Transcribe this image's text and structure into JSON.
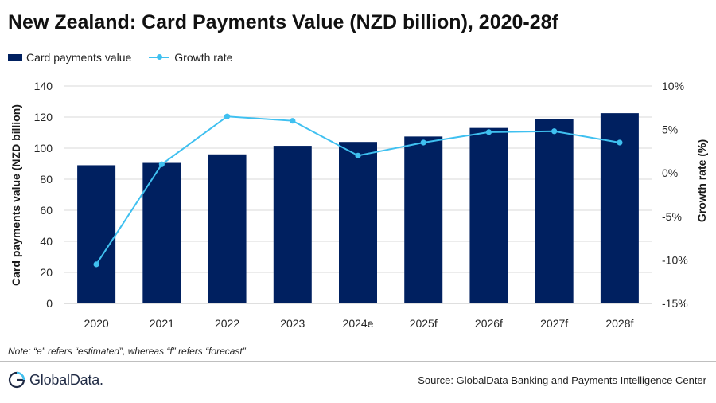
{
  "header": {
    "title": "New Zealand: Card Payments Value (NZD billion), 2020-28f"
  },
  "legend": {
    "bar_label": "Card payments value",
    "line_label": "Growth rate"
  },
  "footer": {
    "note": "Note: “e” refers “estimated”, whereas “f” refers “forecast”",
    "logo_text": "GlobalData.",
    "source": "Source: GlobalData Banking and Payments Intelligence Center"
  },
  "colors": {
    "bar": "#002060",
    "line": "#3FC0F0",
    "grid": "#d9d9d9",
    "axis_text": "#262626"
  },
  "chart_data": {
    "type": "bar",
    "categories": [
      "2020",
      "2021",
      "2022",
      "2023",
      "2024e",
      "2025f",
      "2026f",
      "2027f",
      "2028f"
    ],
    "series": [
      {
        "name": "Card payments value",
        "type": "bar",
        "axis": "left",
        "values": [
          89,
          90.5,
          96,
          101.5,
          104,
          107.5,
          113,
          118.5,
          122.5
        ]
      },
      {
        "name": "Growth rate",
        "type": "line",
        "axis": "right",
        "values": [
          -10.5,
          1.0,
          6.5,
          6.0,
          2.0,
          3.5,
          4.7,
          4.8,
          3.5
        ]
      }
    ],
    "ylabel": "Card payments value (NZD billion)",
    "ylim": [
      0,
      140
    ],
    "yticks": [
      "0",
      "20",
      "40",
      "60",
      "80",
      "100",
      "120",
      "140"
    ],
    "y2label": "Growth rate (%)",
    "y2lim": [
      -15,
      10
    ],
    "y2ticks": [
      "-15%",
      "-10%",
      "-5%",
      "0%",
      "5%",
      "10%"
    ],
    "grid": true,
    "legend_position": "top-left"
  }
}
